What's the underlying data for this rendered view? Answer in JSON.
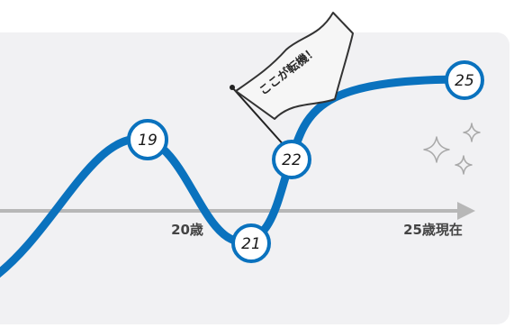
{
  "chart_data": {
    "type": "line",
    "axis_labels": [
      "20歳",
      "25歳現在"
    ],
    "points": [
      {
        "label": "19"
      },
      {
        "label": "21"
      },
      {
        "label": "22"
      },
      {
        "label": "25"
      }
    ],
    "annotation": "ここが転機！",
    "colors": {
      "line": "#0a72be",
      "axis": "#b7b7b7",
      "panel": "#f1f1f3",
      "sparkle": "#a9a9a9"
    }
  }
}
